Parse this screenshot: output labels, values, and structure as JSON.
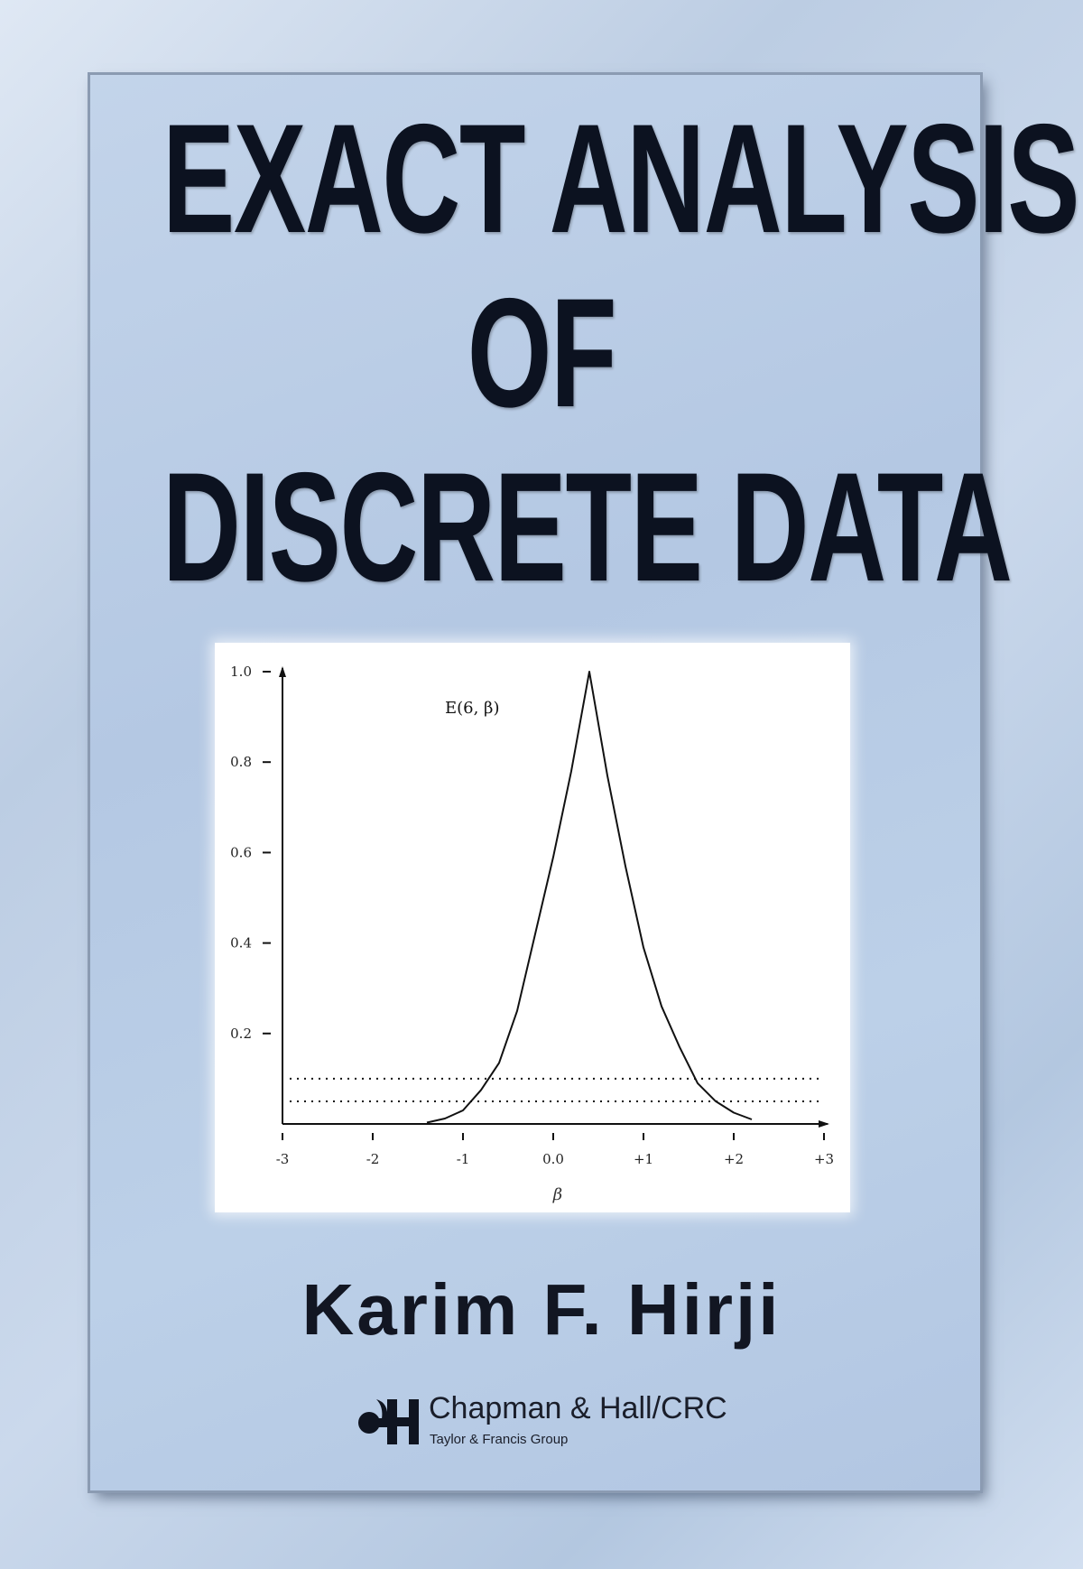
{
  "cover": {
    "title_lines": [
      "EXACT ANALYSIS",
      "OF",
      "DISCRETE DATA"
    ],
    "author": "Karim F. Hirji",
    "publisher": {
      "name": "Chapman & Hall/CRC",
      "group": "Taylor & Francis Group",
      "logo": "CH monogram"
    },
    "colors": {
      "background": "#bccde3",
      "title": "#0c1220"
    }
  },
  "chart_data": {
    "type": "line",
    "title": "",
    "curve_label": "E(6, β)",
    "xlabel": "β",
    "ylabel": "",
    "xlim": [
      -3,
      3
    ],
    "ylim": [
      0,
      1.0
    ],
    "x_ticks": [
      "-3",
      "-2",
      "-1",
      "0.0",
      "+1",
      "+2",
      "+3"
    ],
    "x_tick_values": [
      -3,
      -2,
      -1,
      0,
      1,
      2,
      3
    ],
    "y_ticks": [
      "0.2",
      "0.4",
      "0.6",
      "0.8",
      "1.0"
    ],
    "y_tick_values": [
      0.2,
      0.4,
      0.6,
      0.8,
      1.0
    ],
    "grid": false,
    "series": [
      {
        "x": [
          -1.4,
          -1.2,
          -1.0,
          -0.8,
          -0.6,
          -0.4,
          -0.2,
          0.0,
          0.2,
          0.4,
          0.6,
          0.8,
          1.0,
          1.2,
          1.4,
          1.6,
          1.8,
          2.0,
          2.2
        ],
        "y": [
          0.003,
          0.012,
          0.03,
          0.075,
          0.135,
          0.25,
          0.42,
          0.59,
          0.78,
          1.0,
          0.77,
          0.57,
          0.39,
          0.26,
          0.17,
          0.09,
          0.05,
          0.025,
          0.01
        ]
      }
    ],
    "reference_lines": [
      {
        "y": 0.1,
        "style": "dotted"
      },
      {
        "y": 0.05,
        "style": "dotted"
      }
    ]
  }
}
